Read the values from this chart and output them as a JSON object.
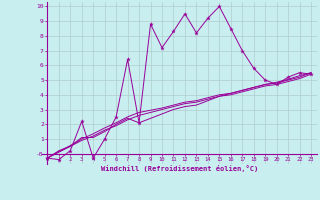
{
  "bg_color": "#c8eef0",
  "line_color": "#990099",
  "grid_color": "#b0cccc",
  "xlabel": "Windchill (Refroidissement éolien,°C)",
  "xlim": [
    -0.5,
    23.5
  ],
  "ylim": [
    -0.7,
    10.3
  ],
  "xtick_vals": [
    0,
    1,
    2,
    3,
    4,
    5,
    6,
    7,
    8,
    9,
    10,
    11,
    12,
    13,
    14,
    15,
    16,
    17,
    18,
    19,
    20,
    21,
    22,
    23
  ],
  "ytick_vals": [
    0,
    1,
    2,
    3,
    4,
    5,
    6,
    7,
    8,
    9,
    10
  ],
  "ytick_labels": [
    "-0",
    "1",
    "2",
    "3",
    "4",
    "5",
    "6",
    "7",
    "8",
    "9",
    "10"
  ],
  "x": [
    0,
    1,
    2,
    3,
    4,
    5,
    6,
    7,
    8,
    9,
    10,
    11,
    12,
    13,
    14,
    15,
    16,
    17,
    18,
    19,
    20,
    21,
    22,
    23
  ],
  "series_jagged": [
    -0.3,
    -0.4,
    0.2,
    2.2,
    -0.3,
    1.0,
    2.5,
    6.4,
    2.1,
    8.8,
    7.2,
    8.3,
    9.5,
    8.2,
    9.2,
    10.0,
    8.5,
    7.0,
    5.8,
    5.0,
    4.7,
    5.2,
    5.5,
    5.4
  ],
  "series_smooth1": [
    -0.3,
    0.2,
    0.5,
    1.1,
    1.1,
    1.5,
    2.0,
    2.4,
    2.1,
    2.4,
    2.7,
    3.0,
    3.2,
    3.3,
    3.6,
    3.9,
    4.1,
    4.3,
    4.5,
    4.7,
    4.8,
    5.0,
    5.2,
    5.5
  ],
  "series_smooth2": [
    -0.3,
    0.1,
    0.5,
    0.9,
    1.2,
    1.6,
    1.9,
    2.3,
    2.6,
    2.8,
    3.0,
    3.2,
    3.4,
    3.5,
    3.7,
    3.9,
    4.0,
    4.2,
    4.4,
    4.6,
    4.7,
    4.9,
    5.1,
    5.4
  ],
  "series_smooth3": [
    -0.3,
    0.15,
    0.55,
    1.0,
    1.35,
    1.75,
    2.1,
    2.5,
    2.8,
    2.95,
    3.1,
    3.3,
    3.5,
    3.6,
    3.8,
    4.0,
    4.1,
    4.3,
    4.5,
    4.7,
    4.85,
    5.05,
    5.3,
    5.5
  ]
}
